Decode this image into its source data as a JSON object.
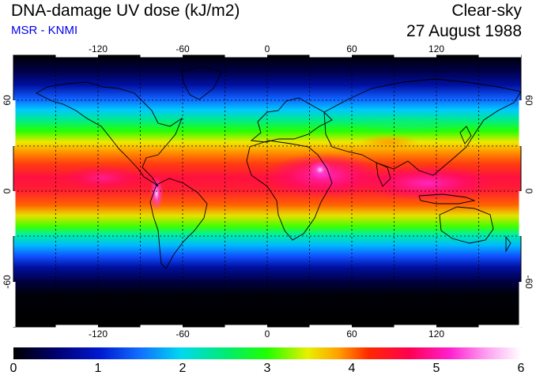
{
  "title": "DNA-damage UV dose (kJ/m2)",
  "subtitle": "MSR - KNMI",
  "sky_condition": "Clear-sky",
  "date": "27 August 1988",
  "colors": {
    "subtitle": "#0000ee",
    "background": "#ffffff",
    "coastline": "#000000",
    "grid": "#000000"
  },
  "map": {
    "projection": "equirectangular",
    "lon_range": [
      -180,
      180
    ],
    "lat_range": [
      -90,
      90
    ],
    "lon_ticks": [
      "-120",
      "-60",
      "0",
      "60",
      "120"
    ],
    "lat_ticks_left": [
      "60",
      "0",
      "-60"
    ],
    "lat_ticks_right": [
      "60",
      "0",
      "-60"
    ],
    "gridlines": "dotted every 30 degrees",
    "field": "UV dose, maximum near 15N band over Africa, Arabia and South Asia, low at poles"
  },
  "colorbar": {
    "ticks": [
      "0",
      "1",
      "2",
      "3",
      "4",
      "5",
      "6"
    ],
    "colors": [
      "#000000",
      "#00008b",
      "#2244ff",
      "#00c8ff",
      "#00e890",
      "#22ff00",
      "#dcff00",
      "#ffb400",
      "#ff3c00",
      "#ff0066",
      "#ff28d2",
      "#ffc8ff",
      "#ffffff"
    ]
  }
}
